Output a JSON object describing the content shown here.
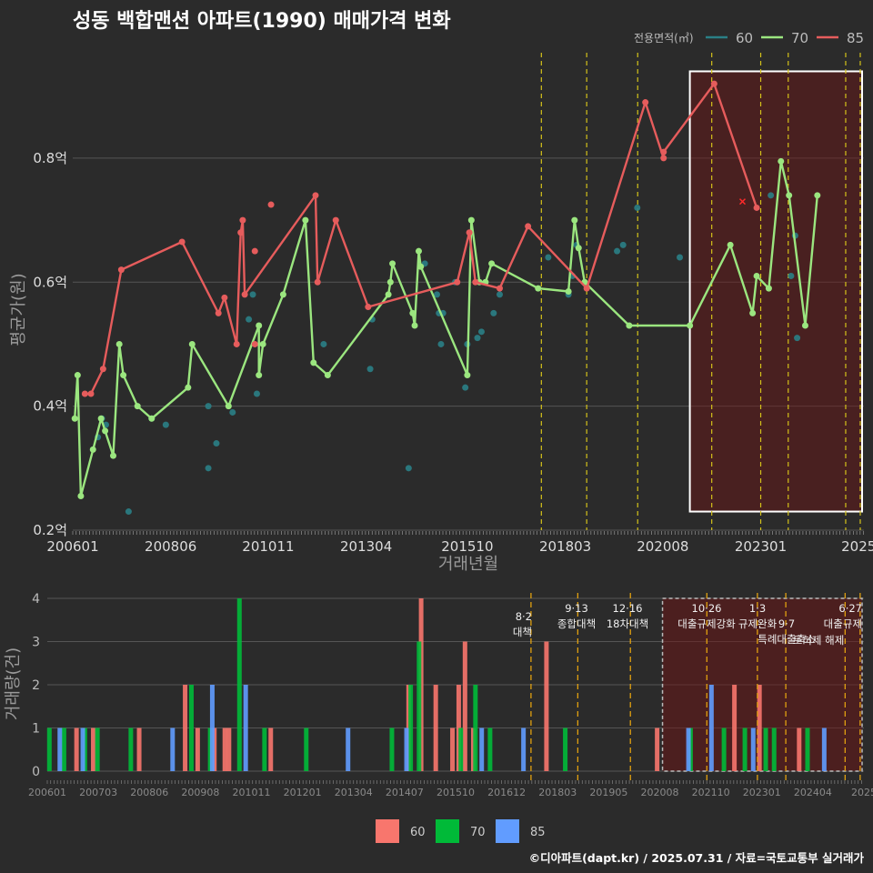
{
  "title": "성동 백합맨션 아파트(1990) 매매가격 변화",
  "footer": "©디아파트(dapt.kr) / 2025.07.31 / 자료=국토교통부 실거래가",
  "legend": {
    "title": "전용면적(㎡)",
    "items": [
      {
        "label": "60",
        "color": "#2a7f86"
      },
      {
        "label": "70",
        "color": "#9be67f"
      },
      {
        "label": "85",
        "color": "#e65c5c"
      }
    ]
  },
  "bar_legend": {
    "items": [
      {
        "label": "60",
        "color": "#f8766d"
      },
      {
        "label": "70",
        "color": "#00ba38"
      },
      {
        "label": "85",
        "color": "#619cff"
      }
    ]
  },
  "chart_data": [
    {
      "type": "line",
      "title": "성동 백합맨션 아파트(1990) 매매가격 변화",
      "xlabel": "거래년월",
      "ylabel": "평균가(원)",
      "xlim": [
        2006.0,
        2025.55
      ],
      "ylim": [
        0.2,
        0.97
      ],
      "x_ticks": [
        {
          "label": "200601",
          "t": 2006.0
        },
        {
          "label": "200806",
          "t": 2008.42
        },
        {
          "label": "201011",
          "t": 2010.83
        },
        {
          "label": "201304",
          "t": 2013.25
        },
        {
          "label": "201510",
          "t": 2015.75
        },
        {
          "label": "201803",
          "t": 2018.17
        },
        {
          "label": "202008",
          "t": 2020.58
        },
        {
          "label": "202301",
          "t": 2023.0
        },
        {
          "label": "2025",
          "t": 2025.42
        }
      ],
      "y_ticks": [
        {
          "label": "0.2억",
          "v": 0.2
        },
        {
          "label": "0.4억",
          "v": 0.4
        },
        {
          "label": "0.6억",
          "v": 0.6
        },
        {
          "label": "0.8억",
          "v": 0.8
        }
      ],
      "policy_dates": [
        2017.58,
        2018.7,
        2019.96,
        2021.79,
        2023.0,
        2023.68,
        2025.1,
        2025.46
      ],
      "highlight": {
        "from": 2020.62,
        "to": 2025.55,
        "y_from": 0.23,
        "y_to": 0.94
      },
      "series": [
        {
          "name": "60",
          "points": [
            [
              2006.62,
              0.35
            ],
            [
              2006.72,
              0.38
            ],
            [
              2006.82,
              0.37
            ],
            [
              2007.38,
              0.23
            ],
            [
              2007.95,
              0.38
            ],
            [
              2008.3,
              0.37
            ],
            [
              2009.35,
              0.3
            ],
            [
              2009.35,
              0.4
            ],
            [
              2009.55,
              0.34
            ],
            [
              2009.95,
              0.39
            ],
            [
              2010.35,
              0.54
            ],
            [
              2010.45,
              0.58
            ],
            [
              2010.55,
              0.42
            ],
            [
              2012.2,
              0.5
            ],
            [
              2013.35,
              0.46
            ],
            [
              2013.4,
              0.54
            ],
            [
              2014.3,
              0.3
            ],
            [
              2014.7,
              0.63
            ],
            [
              2015.0,
              0.58
            ],
            [
              2015.05,
              0.55
            ],
            [
              2015.1,
              0.5
            ],
            [
              2015.15,
              0.55
            ],
            [
              2015.45,
              0.6
            ],
            [
              2015.7,
              0.43
            ],
            [
              2015.75,
              0.5
            ],
            [
              2016.0,
              0.51
            ],
            [
              2016.1,
              0.52
            ],
            [
              2016.4,
              0.55
            ],
            [
              2016.55,
              0.58
            ],
            [
              2017.75,
              0.64
            ],
            [
              2018.25,
              0.58
            ],
            [
              2018.35,
              0.61
            ],
            [
              2018.45,
              0.66
            ],
            [
              2019.45,
              0.65
            ],
            [
              2019.6,
              0.66
            ],
            [
              2019.95,
              0.72
            ],
            [
              2021.0,
              0.64
            ],
            [
              2023.25,
              0.74
            ],
            [
              2023.75,
              0.61
            ],
            [
              2023.85,
              0.675
            ],
            [
              2023.9,
              0.51
            ]
          ]
        },
        {
          "name": "70",
          "points": [
            [
              2006.05,
              0.38
            ],
            [
              2006.12,
              0.45
            ],
            [
              2006.2,
              0.255
            ],
            [
              2006.5,
              0.33
            ],
            [
              2006.7,
              0.38
            ],
            [
              2006.8,
              0.36
            ],
            [
              2007.0,
              0.32
            ],
            [
              2007.15,
              0.5
            ],
            [
              2007.25,
              0.45
            ],
            [
              2007.6,
              0.4
            ],
            [
              2007.95,
              0.38
            ],
            [
              2008.85,
              0.43
            ],
            [
              2008.95,
              0.5
            ],
            [
              2009.85,
              0.4
            ],
            [
              2010.6,
              0.53
            ],
            [
              2010.6,
              0.45
            ],
            [
              2010.7,
              0.5
            ],
            [
              2011.2,
              0.58
            ],
            [
              2011.75,
              0.7
            ],
            [
              2011.95,
              0.47
            ],
            [
              2012.3,
              0.45
            ],
            [
              2013.8,
              0.58
            ],
            [
              2013.85,
              0.6
            ],
            [
              2013.9,
              0.63
            ],
            [
              2014.4,
              0.55
            ],
            [
              2014.45,
              0.53
            ],
            [
              2014.55,
              0.65
            ],
            [
              2014.6,
              0.625
            ],
            [
              2015.75,
              0.45
            ],
            [
              2015.85,
              0.7
            ],
            [
              2016.05,
              0.6
            ],
            [
              2016.2,
              0.6
            ],
            [
              2016.35,
              0.63
            ],
            [
              2017.5,
              0.59
            ],
            [
              2018.25,
              0.585
            ],
            [
              2018.4,
              0.7
            ],
            [
              2018.5,
              0.655
            ],
            [
              2018.65,
              0.6
            ],
            [
              2019.75,
              0.53
            ],
            [
              2021.25,
              0.53
            ],
            [
              2022.25,
              0.66
            ],
            [
              2022.8,
              0.55
            ],
            [
              2022.9,
              0.61
            ],
            [
              2023.2,
              0.59
            ],
            [
              2023.5,
              0.795
            ],
            [
              2023.7,
              0.74
            ],
            [
              2024.1,
              0.53
            ],
            [
              2024.4,
              0.74
            ]
          ]
        },
        {
          "name": "85",
          "points": [
            [
              2006.3,
              0.42
            ],
            [
              2006.45,
              0.42
            ],
            [
              2006.75,
              0.46
            ],
            [
              2007.2,
              0.62
            ],
            [
              2008.7,
              0.665
            ],
            [
              2009.6,
              0.55
            ],
            [
              2009.75,
              0.575
            ],
            [
              2010.05,
              0.5
            ],
            [
              2010.15,
              0.68
            ],
            [
              2010.2,
              0.7
            ],
            [
              2010.25,
              0.58
            ],
            [
              2012.0,
              0.74
            ],
            [
              2012.05,
              0.6
            ],
            [
              2012.5,
              0.7
            ],
            [
              2013.3,
              0.56
            ],
            [
              2015.5,
              0.6
            ],
            [
              2015.8,
              0.68
            ],
            [
              2015.95,
              0.6
            ],
            [
              2016.55,
              0.59
            ],
            [
              2017.25,
              0.69
            ],
            [
              2018.7,
              0.59
            ],
            [
              2020.15,
              0.89
            ],
            [
              2020.6,
              0.8
            ],
            [
              2020.6,
              0.81
            ],
            [
              2021.85,
              0.92
            ],
            [
              2022.9,
              0.72
            ]
          ]
        },
        {
          "name": "85-isolated",
          "points": [
            [
              2010.5,
              0.65
            ],
            [
              2010.5,
              0.5
            ],
            [
              2010.9,
              0.725
            ]
          ]
        }
      ]
    },
    {
      "type": "bar",
      "title": "",
      "xlabel": "",
      "ylabel": "거래량(건)",
      "ylim": [
        0,
        4
      ],
      "x_ticks": [
        "200601",
        "200703",
        "200806",
        "200908",
        "201011",
        "201201",
        "201304",
        "201407",
        "201510",
        "201612",
        "201803",
        "201905",
        "202008",
        "202110",
        "202301",
        "202404",
        "2025"
      ],
      "series": [
        {
          "name": "60",
          "values": [
            [
              2006.7,
              1
            ],
            [
              2007.1,
              1
            ],
            [
              2008.2,
              1
            ],
            [
              2009.3,
              2
            ],
            [
              2009.6,
              1
            ],
            [
              2010.0,
              1
            ],
            [
              2010.25,
              1
            ],
            [
              2010.35,
              1
            ],
            [
              2011.35,
              1
            ],
            [
              2014.65,
              2
            ],
            [
              2014.95,
              4
            ],
            [
              2015.3,
              2
            ],
            [
              2015.7,
              1
            ],
            [
              2015.85,
              2
            ],
            [
              2016.0,
              3
            ],
            [
              2016.2,
              1
            ],
            [
              2017.95,
              3
            ],
            [
              2020.6,
              1
            ],
            [
              2022.45,
              2
            ],
            [
              2023.05,
              2
            ],
            [
              2024.0,
              1
            ]
          ]
        },
        {
          "name": "70",
          "values": [
            [
              2006.05,
              1
            ],
            [
              2006.4,
              1
            ],
            [
              2006.9,
              1
            ],
            [
              2007.2,
              1
            ],
            [
              2008.0,
              1
            ],
            [
              2009.45,
              2
            ],
            [
              2009.9,
              1
            ],
            [
              2010.6,
              4
            ],
            [
              2011.2,
              1
            ],
            [
              2012.2,
              1
            ],
            [
              2014.25,
              1
            ],
            [
              2014.7,
              2
            ],
            [
              2014.9,
              3
            ],
            [
              2015.9,
              1
            ],
            [
              2016.25,
              2
            ],
            [
              2016.6,
              1
            ],
            [
              2018.4,
              1
            ],
            [
              2021.4,
              1
            ],
            [
              2022.2,
              1
            ],
            [
              2022.7,
              1
            ],
            [
              2023.2,
              1
            ],
            [
              2023.4,
              1
            ],
            [
              2024.2,
              1
            ]
          ]
        },
        {
          "name": "85",
          "values": [
            [
              2006.3,
              1
            ],
            [
              2006.85,
              1
            ],
            [
              2009.0,
              1
            ],
            [
              2009.95,
              2
            ],
            [
              2010.75,
              2
            ],
            [
              2013.2,
              1
            ],
            [
              2014.6,
              1
            ],
            [
              2016.4,
              1
            ],
            [
              2017.4,
              1
            ],
            [
              2021.35,
              1
            ],
            [
              2021.9,
              2
            ],
            [
              2022.9,
              1
            ],
            [
              2024.6,
              1
            ]
          ]
        }
      ],
      "annotations": [
        {
          "date": "8·2",
          "text": "대책"
        },
        {
          "date": "9·13",
          "text": "종합대책"
        },
        {
          "date": "12·16",
          "text": "18차대책"
        },
        {
          "date": "10·26",
          "text": "대출규제강화"
        },
        {
          "date": "1·3",
          "text": "규제완화"
        },
        {
          "date": "9·7",
          "text": "특례대출축소"
        },
        {
          "date": "",
          "text": "토허제 해제"
        },
        {
          "date": "6·27",
          "text": "대출규제"
        }
      ]
    }
  ]
}
